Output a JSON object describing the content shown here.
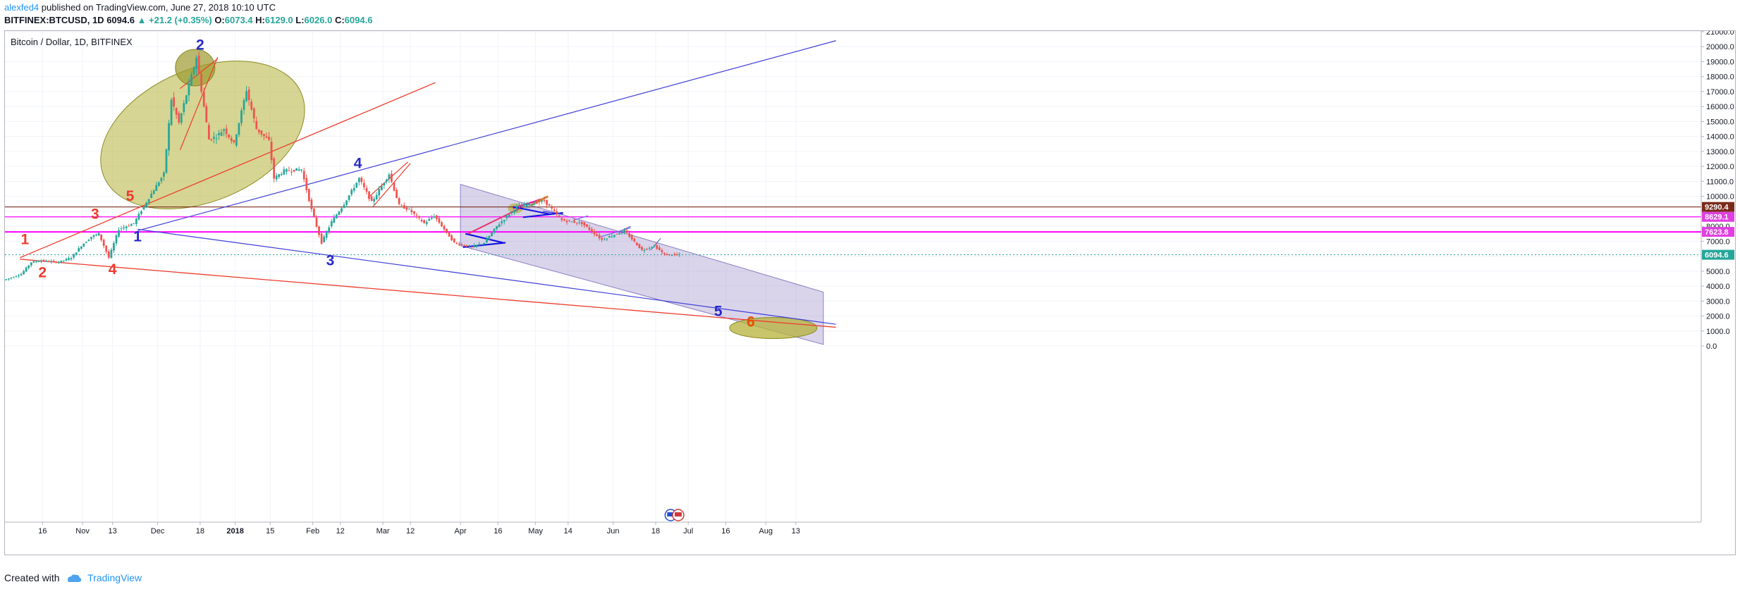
{
  "header": {
    "author": "alexfed4",
    "published": "published on TradingView.com, June 27, 2018 10:10 UTC",
    "symbol": "BITFINEX:BTCUSD, 1D",
    "last": "6094.6",
    "change": "▲ +21.2 (+0.35%)",
    "o_label": "O:",
    "o_val": "6073.4",
    "h_label": "H:",
    "h_val": "6129.0",
    "l_label": "L:",
    "l_val": "6026.0",
    "c_label": "C:",
    "c_val": "6094.6"
  },
  "symbol_label": "Bitcoin / Dollar, 1D, BITFINEX",
  "footer": {
    "created_with": "Created with",
    "brand": "TradingView"
  },
  "colors": {
    "up": "#26a69a",
    "down": "#ef5350",
    "blue_line": "#3f3fd6",
    "red_line": "#ef3b2c",
    "magenta": "#ff00ff",
    "brown": "#7b2a1a",
    "ellipse": "#b5b23a",
    "channel": "#9b8fc9"
  },
  "chart_data": {
    "type": "candlestick",
    "title": "Bitcoin / Dollar, 1D, BITFINEX",
    "xlabel": "",
    "ylabel": "",
    "ylim": [
      0,
      21000
    ],
    "y_ticks": [
      "21000.0",
      "20000.0",
      "19000.0",
      "18000.0",
      "17000.0",
      "16000.0",
      "15000.0",
      "14000.0",
      "13000.0",
      "12000.0",
      "11000.0",
      "10000.0",
      "9000.0",
      "8000.0",
      "7000.0",
      "6000.0",
      "5000.0",
      "4000.0",
      "3000.0",
      "2000.0",
      "1000.0",
      "0.0"
    ],
    "x_ticks": [
      {
        "label": "16",
        "date": "2017-10-16"
      },
      {
        "label": "Nov",
        "date": "2017-11-01"
      },
      {
        "label": "13",
        "date": "2017-11-13"
      },
      {
        "label": "Dec",
        "date": "2017-12-01"
      },
      {
        "label": "18",
        "date": "2017-12-18"
      },
      {
        "label": "2018",
        "date": "2018-01-01"
      },
      {
        "label": "15",
        "date": "2018-01-15"
      },
      {
        "label": "Feb",
        "date": "2018-02-01"
      },
      {
        "label": "12",
        "date": "2018-02-12"
      },
      {
        "label": "Mar",
        "date": "2018-03-01"
      },
      {
        "label": "12",
        "date": "2018-03-12"
      },
      {
        "label": "Apr",
        "date": "2018-04-01"
      },
      {
        "label": "16",
        "date": "2018-04-16"
      },
      {
        "label": "May",
        "date": "2018-05-01"
      },
      {
        "label": "14",
        "date": "2018-05-14"
      },
      {
        "label": "Jun",
        "date": "2018-06-01"
      },
      {
        "label": "18",
        "date": "2018-06-18"
      },
      {
        "label": "Jul",
        "date": "2018-07-01"
      },
      {
        "label": "16",
        "date": "2018-07-16"
      },
      {
        "label": "Aug",
        "date": "2018-08-01"
      },
      {
        "label": "13",
        "date": "2018-08-13"
      }
    ],
    "price_path": [
      [
        "2017-10-01",
        4400
      ],
      [
        "2017-10-08",
        4800
      ],
      [
        "2017-10-12",
        5600
      ],
      [
        "2017-10-16",
        5700
      ],
      [
        "2017-10-23",
        5600
      ],
      [
        "2017-10-28",
        5900
      ],
      [
        "2017-11-01",
        6700
      ],
      [
        "2017-11-05",
        7300
      ],
      [
        "2017-11-08",
        7500
      ],
      [
        "2017-11-12",
        5900
      ],
      [
        "2017-11-16",
        7800
      ],
      [
        "2017-11-22",
        8200
      ],
      [
        "2017-11-28",
        9900
      ],
      [
        "2017-12-04",
        11500
      ],
      [
        "2017-12-07",
        16500
      ],
      [
        "2017-12-10",
        14900
      ],
      [
        "2017-12-17",
        19300
      ],
      [
        "2017-12-22",
        13800
      ],
      [
        "2017-12-25",
        14000
      ],
      [
        "2017-12-28",
        14500
      ],
      [
        "2018-01-01",
        13500
      ],
      [
        "2018-01-06",
        17100
      ],
      [
        "2018-01-10",
        14500
      ],
      [
        "2018-01-15",
        13700
      ],
      [
        "2018-01-17",
        11200
      ],
      [
        "2018-01-21",
        11700
      ],
      [
        "2018-01-28",
        11800
      ],
      [
        "2018-02-01",
        9100
      ],
      [
        "2018-02-05",
        6900
      ],
      [
        "2018-02-09",
        8300
      ],
      [
        "2018-02-14",
        9500
      ],
      [
        "2018-02-20",
        11200
      ],
      [
        "2018-02-25",
        9600
      ],
      [
        "2018-03-04",
        11500
      ],
      [
        "2018-03-08",
        9400
      ],
      [
        "2018-03-12",
        9100
      ],
      [
        "2018-03-18",
        8200
      ],
      [
        "2018-03-22",
        8700
      ],
      [
        "2018-03-30",
        6900
      ],
      [
        "2018-04-06",
        6600
      ],
      [
        "2018-04-11",
        6900
      ],
      [
        "2018-04-16",
        8000
      ],
      [
        "2018-04-24",
        9300
      ],
      [
        "2018-05-05",
        9700
      ],
      [
        "2018-05-12",
        8400
      ],
      [
        "2018-05-20",
        8200
      ],
      [
        "2018-05-28",
        7100
      ],
      [
        "2018-06-06",
        7700
      ],
      [
        "2018-06-13",
        6400
      ],
      [
        "2018-06-18",
        6700
      ],
      [
        "2018-06-22",
        6100
      ],
      [
        "2018-06-27",
        6094.6
      ]
    ],
    "price_labels": [
      {
        "text": "9290.4",
        "value": 9290.4,
        "color": "#7b2a1a"
      },
      {
        "text": "8629.1",
        "value": 8629.1,
        "color": "#e040e0"
      },
      {
        "text": "7623.8",
        "value": 7623.8,
        "color": "#e040e0"
      },
      {
        "text": "6094.6",
        "value": 6094.6,
        "color": "#26a69a"
      }
    ],
    "wave_labels": [
      {
        "text": "1",
        "color": "#ef3b2c"
      },
      {
        "text": "2",
        "color": "#ef3b2c"
      },
      {
        "text": "3",
        "color": "#ef3b2c"
      },
      {
        "text": "4",
        "color": "#ef3b2c"
      },
      {
        "text": "5",
        "color": "#ef3b2c"
      },
      {
        "text": "1",
        "color": "#2929c9"
      },
      {
        "text": "2",
        "color": "#2929c9"
      },
      {
        "text": "3",
        "color": "#2929c9"
      },
      {
        "text": "4",
        "color": "#2929c9"
      },
      {
        "text": "5",
        "color": "#2929c9"
      },
      {
        "text": "6",
        "color": "#e65100"
      }
    ]
  }
}
